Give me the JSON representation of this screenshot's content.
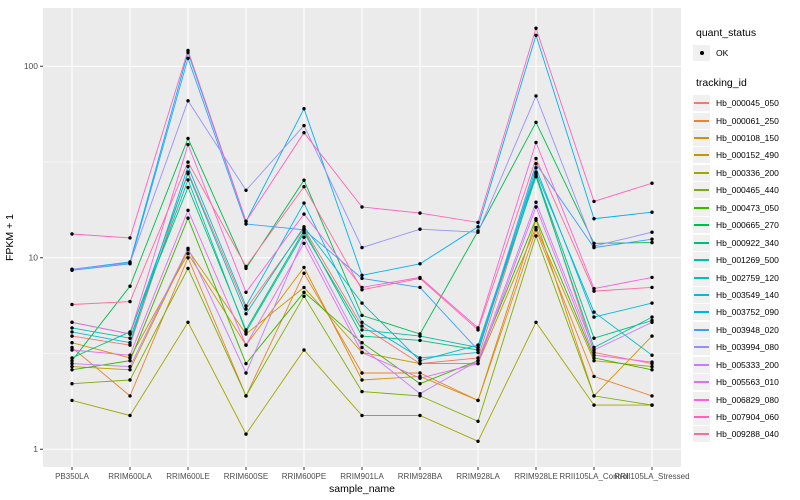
{
  "chart_data": {
    "type": "line",
    "xlabel": "sample_name",
    "ylabel": "FPKM + 1",
    "y_scale": "log10",
    "y_ticks": [
      1,
      10,
      100
    ],
    "y_tick_labels": [
      "1",
      "10",
      "100"
    ],
    "grid": "on",
    "legend_position": "right",
    "panel_bg": "#EBEBEB",
    "grid_color": "#FFFFFF",
    "point_color": "#000000",
    "tick_label_color": "#4D4D4D",
    "categories": [
      "PB350LA",
      "RRIM600LA",
      "RRIM600LE",
      "RRIM600SE",
      "RRIM600PE",
      "RRIM901LA",
      "RRIM928BA",
      "RRIM928LA",
      "RRIM928LE",
      "RRII105LA_Control",
      "RRII105LA_Stressed"
    ],
    "series": [
      {
        "name": "Hb_000045_050",
        "color": "#F8766D",
        "values": [
          3.9,
          3.5,
          28.0,
          5.4,
          14.2,
          4.4,
          2.8,
          3.0,
          27.5,
          3.2,
          2.8
        ]
      },
      {
        "name": "Hb_000061_250",
        "color": "#EA8331",
        "values": [
          3.4,
          1.9,
          10.0,
          1.9,
          8.3,
          2.5,
          2.5,
          1.8,
          14.0,
          2.4,
          1.9
        ]
      },
      {
        "name": "Hb_000108_150",
        "color": "#D89000",
        "values": [
          3.6,
          3.0,
          10.5,
          3.5,
          8.9,
          2.3,
          2.4,
          1.8,
          15.7,
          1.9,
          3.9
        ]
      },
      {
        "name": "Hb_000152_490",
        "color": "#C09B00",
        "values": [
          2.7,
          2.6,
          11.0,
          4.0,
          7.0,
          3.2,
          2.8,
          2.8,
          14.4,
          2.9,
          2.7
        ]
      },
      {
        "name": "Hb_000336_200",
        "color": "#A3A500",
        "values": [
          1.8,
          1.5,
          4.6,
          1.2,
          3.3,
          1.5,
          1.5,
          1.1,
          4.6,
          1.7,
          1.7
        ]
      },
      {
        "name": "Hb_000465_440",
        "color": "#7CAE00",
        "values": [
          2.2,
          2.3,
          8.8,
          1.9,
          6.3,
          2.0,
          1.9,
          1.4,
          13.0,
          1.9,
          1.7
        ]
      },
      {
        "name": "Hb_000473_050",
        "color": "#39B600",
        "values": [
          2.6,
          2.9,
          16.1,
          2.8,
          6.6,
          3.6,
          2.2,
          2.9,
          16.0,
          3.0,
          2.6
        ]
      },
      {
        "name": "Hb_000665_270",
        "color": "#00BB4E",
        "values": [
          2.9,
          7.1,
          42.0,
          8.8,
          25.4,
          5.0,
          4.0,
          13.8,
          51.0,
          11.9,
          12.0
        ]
      },
      {
        "name": "Hb_000922_340",
        "color": "#00BF7D",
        "values": [
          3.0,
          4.1,
          23.3,
          4.2,
          13.9,
          3.9,
          3.7,
          3.3,
          27.0,
          3.8,
          4.7
        ]
      },
      {
        "name": "Hb_001269_500",
        "color": "#00C1A3",
        "values": [
          4.3,
          3.8,
          25.5,
          4.1,
          13.5,
          4.2,
          3.9,
          3.4,
          26.5,
          3.4,
          4.9
        ]
      },
      {
        "name": "Hb_002759_120",
        "color": "#00BFC4",
        "values": [
          4.6,
          4.0,
          27.5,
          5.1,
          14.5,
          5.8,
          2.9,
          3.5,
          28.0,
          5.2,
          3.1
        ]
      },
      {
        "name": "Hb_003549_140",
        "color": "#00BAE0",
        "values": [
          4.1,
          3.6,
          30.0,
          5.6,
          19.3,
          4.6,
          3.0,
          3.2,
          29.5,
          4.9,
          5.8
        ]
      },
      {
        "name": "Hb_003752_090",
        "color": "#00B0F6",
        "values": [
          8.7,
          9.5,
          118.0,
          15.5,
          60.0,
          8.1,
          9.3,
          14.5,
          145.0,
          16.0,
          17.3
        ]
      },
      {
        "name": "Hb_003948_020",
        "color": "#35A2FF",
        "values": [
          8.6,
          9.3,
          110.0,
          15.0,
          14.0,
          7.8,
          7.0,
          3.3,
          31.0,
          11.3,
          12.5
        ]
      },
      {
        "name": "Hb_003994_080",
        "color": "#9590FF",
        "values": [
          8.7,
          9.4,
          66.0,
          22.5,
          49.0,
          11.3,
          14.1,
          13.6,
          70.0,
          11.5,
          13.6
        ]
      },
      {
        "name": "Hb_005333_200",
        "color": "#C77CFF",
        "values": [
          2.8,
          2.7,
          11.2,
          2.5,
          12.8,
          3.4,
          1.95,
          2.9,
          19.5,
          3.3,
          4.6
        ]
      },
      {
        "name": "Hb_005563_010",
        "color": "#E76BF3",
        "values": [
          3.3,
          3.1,
          17.7,
          3.5,
          11.9,
          3.2,
          2.35,
          2.8,
          18.4,
          3.1,
          2.85
        ]
      },
      {
        "name": "Hb_006829_080",
        "color": "#FA62DB",
        "values": [
          4.6,
          4.0,
          39.0,
          6.6,
          16.9,
          7.0,
          7.9,
          4.3,
          40.0,
          6.9,
          7.9
        ]
      },
      {
        "name": "Hb_007904_060",
        "color": "#FF62BC",
        "values": [
          13.3,
          12.7,
          121.0,
          15.5,
          45.0,
          18.4,
          17.1,
          15.3,
          158.0,
          19.7,
          24.5
        ]
      },
      {
        "name": "Hb_009288_040",
        "color": "#FF6A98",
        "values": [
          5.7,
          5.9,
          31.6,
          9.0,
          23.5,
          6.8,
          7.8,
          4.2,
          33.0,
          6.7,
          7.0
        ]
      }
    ]
  },
  "legend": {
    "quant_status_title": "quant_status",
    "quant_status_items": [
      {
        "label": "OK",
        "shape": "point"
      }
    ],
    "tracking_id_title": "tracking_id"
  }
}
